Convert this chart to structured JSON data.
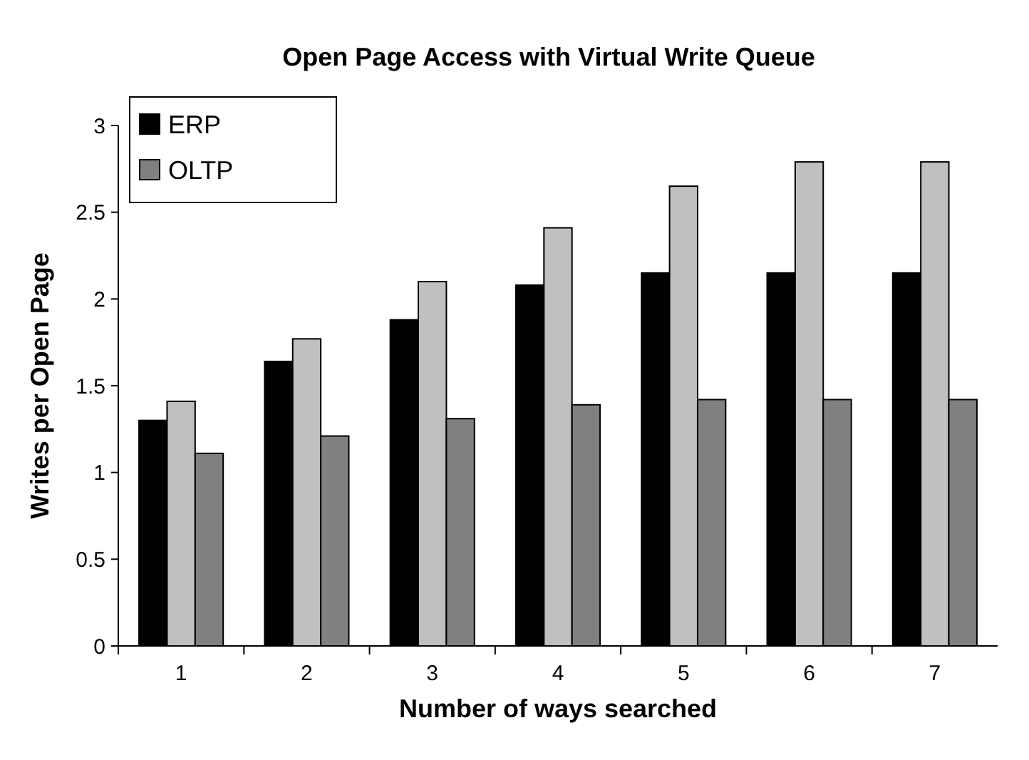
{
  "chart_data": {
    "type": "bar",
    "title": "Open Page Access with Virtual Write Queue",
    "xlabel": "Number of ways searched",
    "ylabel": "Writes per Open Page",
    "categories": [
      "1",
      "2",
      "3",
      "4",
      "5",
      "6",
      "7"
    ],
    "series": [
      {
        "name": "ERP",
        "color": "#000000",
        "values": [
          1.3,
          1.64,
          1.88,
          2.08,
          2.15,
          2.15,
          2.15
        ]
      },
      {
        "color": "#c0c0c0",
        "values": [
          1.41,
          1.77,
          2.1,
          2.41,
          2.65,
          2.79,
          2.79
        ]
      },
      {
        "name": "OLTP",
        "color": "#808080",
        "values": [
          1.11,
          1.21,
          1.31,
          1.39,
          1.42,
          1.42,
          1.42
        ]
      }
    ],
    "ylim": [
      0,
      3
    ],
    "yticks": [
      0,
      0.5,
      1,
      1.5,
      2,
      2.5,
      3
    ],
    "grid": false,
    "legend": "top left"
  }
}
